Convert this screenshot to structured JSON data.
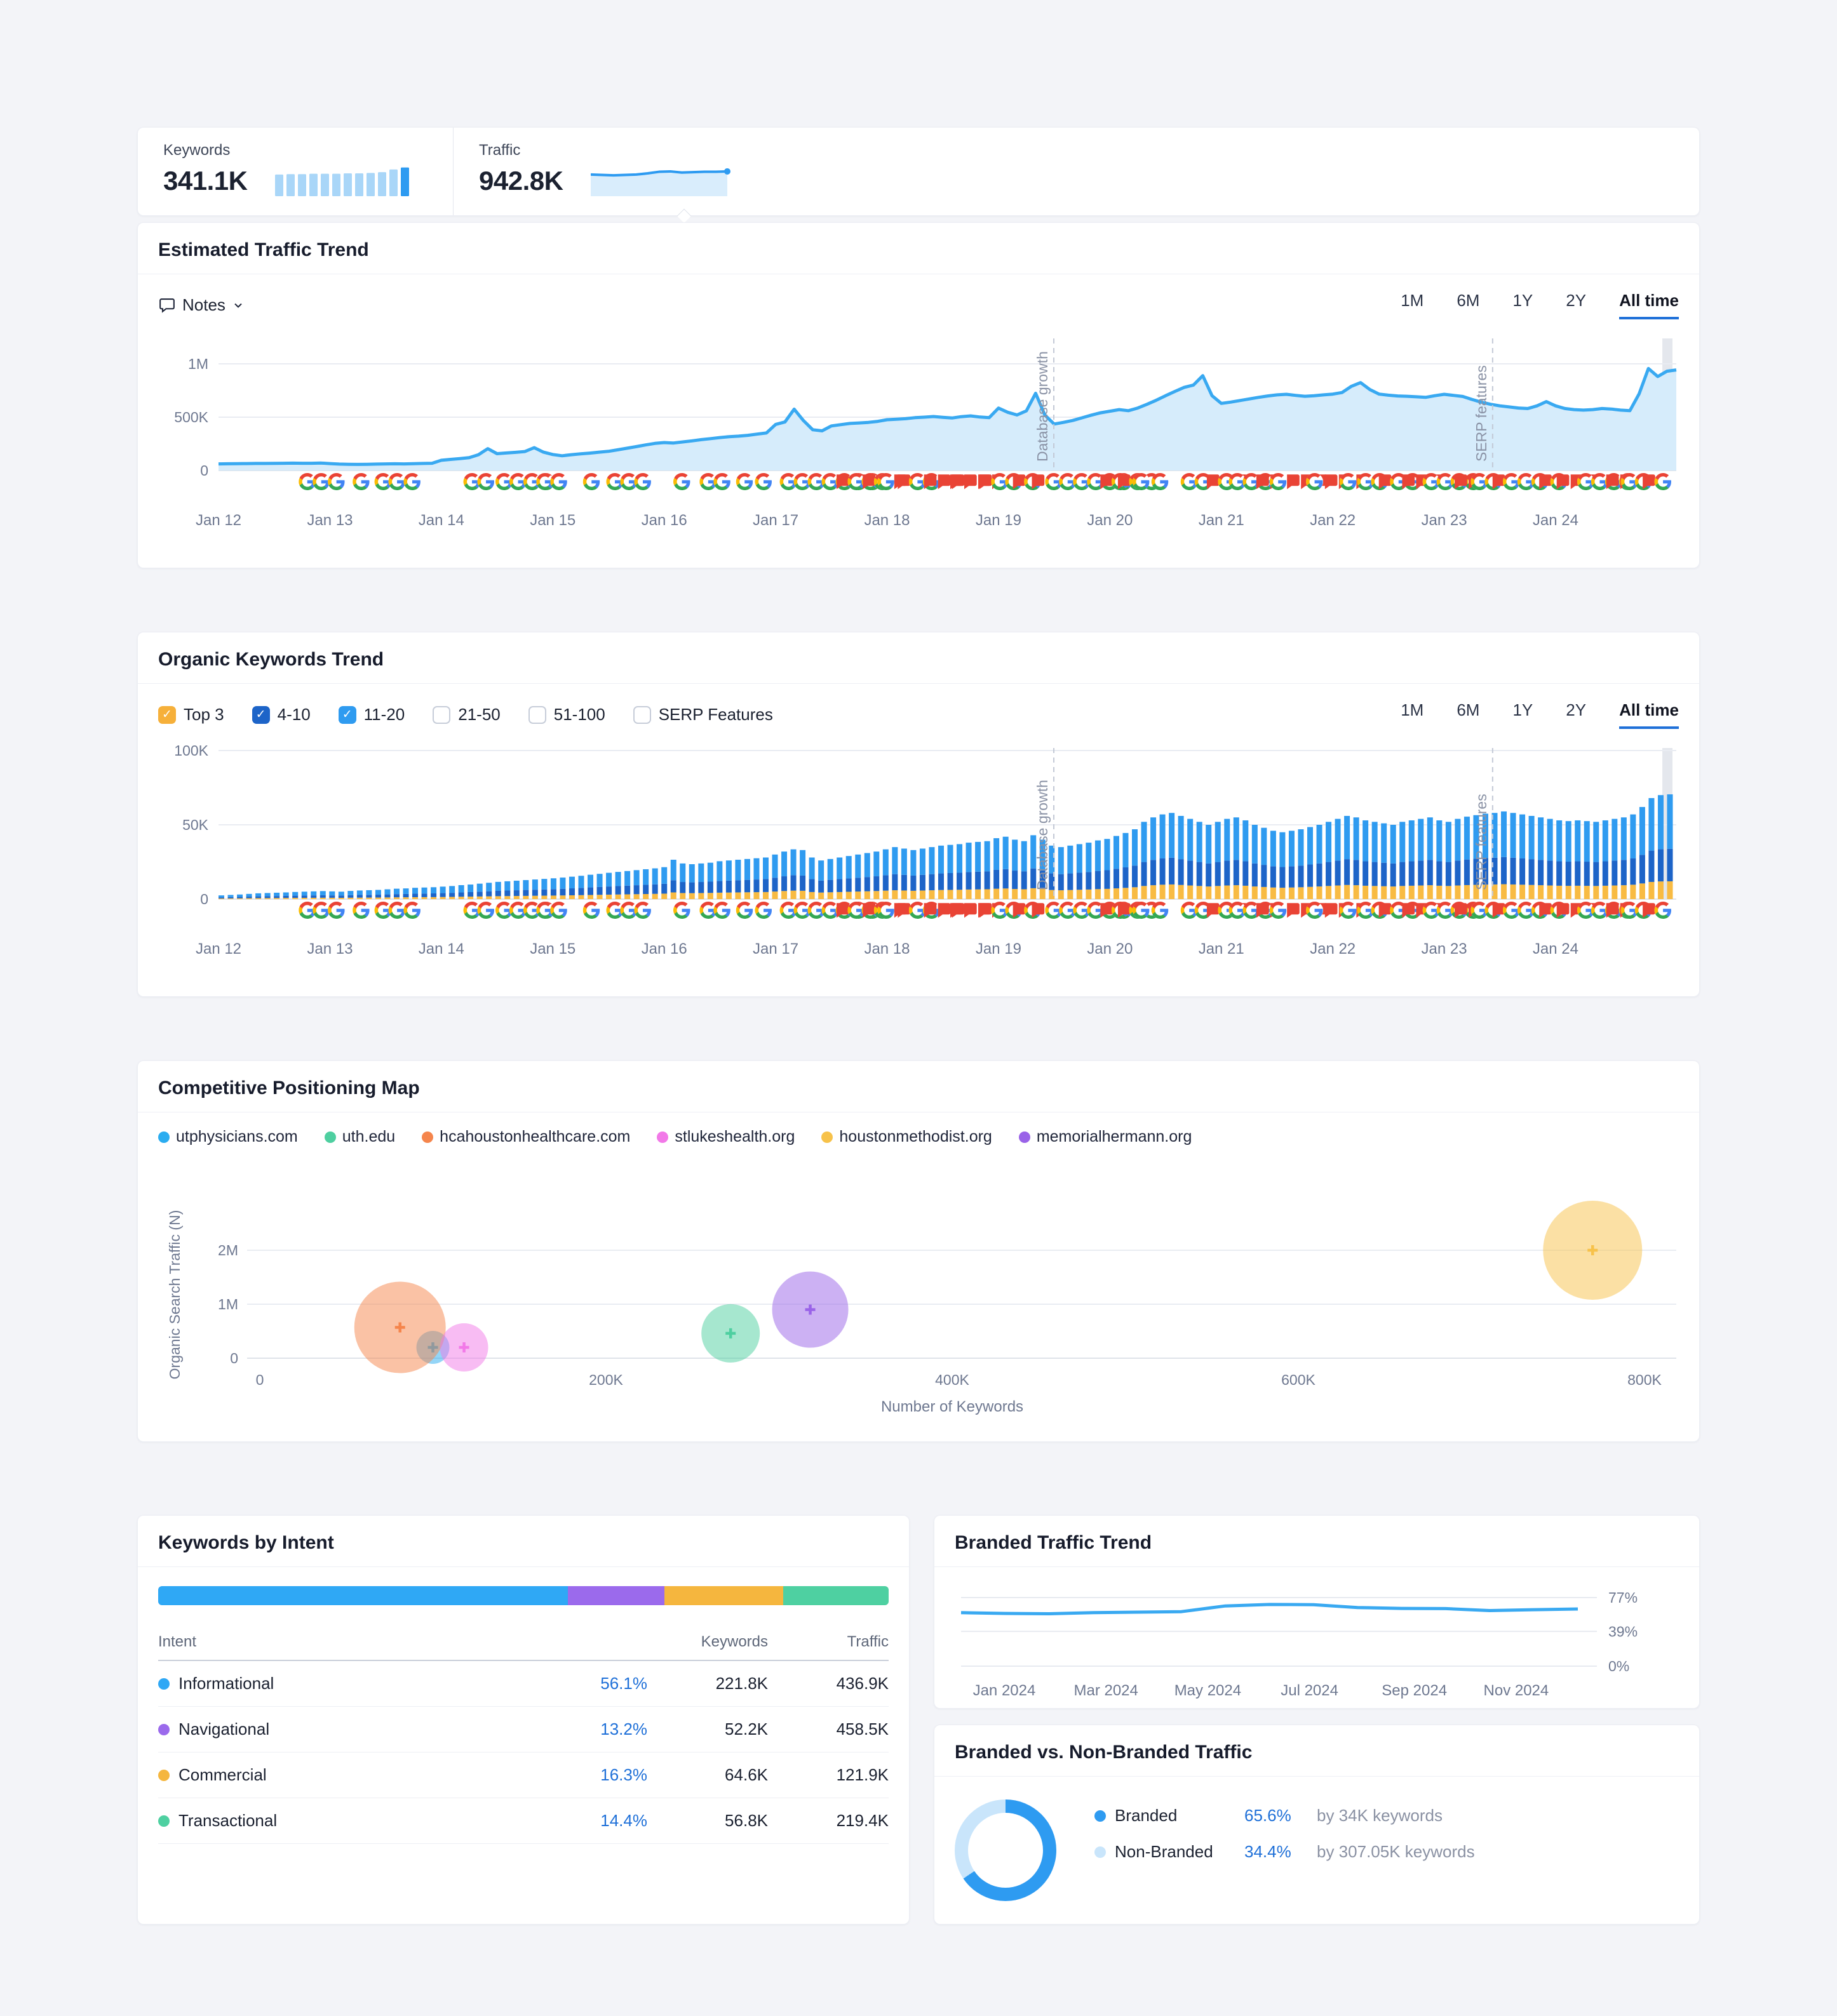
{
  "summary": {
    "keywords": {
      "label": "Keywords",
      "value": "341.1K",
      "spark": [
        55,
        56,
        56,
        57,
        57,
        57,
        58,
        58,
        59,
        61,
        68,
        73
      ],
      "bar_color": "#a9d6f8",
      "bar_active": "#2e9bf1"
    },
    "traffic": {
      "label": "Traffic",
      "value": "942.8K",
      "spark": [
        55,
        54,
        53,
        54,
        55,
        58,
        62,
        63,
        60,
        61,
        62,
        62,
        63
      ],
      "line_color": "#2e9bf1",
      "fill_color": "#d9edfc"
    }
  },
  "timeranges": {
    "options": [
      "1M",
      "6M",
      "1Y",
      "2Y",
      "All time"
    ],
    "active": "All time"
  },
  "events": [
    {
      "p": 0.055,
      "s": "GG"
    },
    {
      "p": 0.075,
      "s": "G"
    },
    {
      "p": 0.092,
      "s": "G"
    },
    {
      "p": 0.107,
      "s": "GG"
    },
    {
      "p": 0.127,
      "s": "G"
    },
    {
      "p": 0.168,
      "s": "GG"
    },
    {
      "p": 0.19,
      "s": "GGGG"
    },
    {
      "p": 0.218,
      "s": "GG"
    },
    {
      "p": 0.25,
      "s": "G"
    },
    {
      "p": 0.266,
      "s": "GGG"
    },
    {
      "p": 0.312,
      "s": "G"
    },
    {
      "p": 0.33,
      "s": "GG"
    },
    {
      "p": 0.355,
      "s": "G"
    },
    {
      "p": 0.368,
      "s": "G"
    },
    {
      "p": 0.385,
      "s": "GGGGGGG"
    },
    {
      "p": 0.422,
      "s": "FGG"
    },
    {
      "p": 0.44,
      "s": "FG"
    },
    {
      "p": 0.452,
      "s": "GF"
    },
    {
      "p": 0.464,
      "s": "FGG"
    },
    {
      "p": 0.482,
      "s": "FFF"
    },
    {
      "p": 0.5,
      "s": "FFFF"
    },
    {
      "p": 0.52,
      "s": "F"
    },
    {
      "p": 0.53,
      "s": "GG"
    },
    {
      "p": 0.543,
      "s": "FG"
    },
    {
      "p": 0.556,
      "s": "F"
    },
    {
      "p": 0.567,
      "s": "GGGGGGGG"
    },
    {
      "p": 0.603,
      "s": "FG"
    },
    {
      "p": 0.615,
      "s": "FG"
    },
    {
      "p": 0.627,
      "s": "G"
    },
    {
      "p": 0.64,
      "s": "G"
    },
    {
      "p": 0.66,
      "s": "GG"
    },
    {
      "p": 0.676,
      "s": "FGF"
    },
    {
      "p": 0.693,
      "s": "GGG"
    },
    {
      "p": 0.71,
      "s": "FF"
    },
    {
      "p": 0.721,
      "s": "G"
    },
    {
      "p": 0.731,
      "s": "FFF"
    },
    {
      "p": 0.746,
      "s": "G"
    },
    {
      "p": 0.757,
      "s": "FF"
    },
    {
      "p": 0.769,
      "s": "GF"
    },
    {
      "p": 0.781,
      "s": "GG"
    },
    {
      "p": 0.794,
      "s": "FGG"
    },
    {
      "p": 0.81,
      "s": "FFF"
    },
    {
      "p": 0.826,
      "s": "GGGG"
    },
    {
      "p": 0.846,
      "s": "FF"
    },
    {
      "p": 0.859,
      "s": "GG"
    },
    {
      "p": 0.872,
      "s": "F"
    },
    {
      "p": 0.881,
      "s": "G"
    },
    {
      "p": 0.891,
      "s": "GG"
    },
    {
      "p": 0.904,
      "s": "FG"
    },
    {
      "p": 0.916,
      "s": "FFF"
    },
    {
      "p": 0.932,
      "s": "GGGG"
    },
    {
      "p": 0.95,
      "s": "FF"
    },
    {
      "p": 0.962,
      "s": "GG"
    },
    {
      "p": 0.975,
      "s": "F"
    },
    {
      "p": 0.985,
      "s": "G"
    }
  ],
  "traffic_trend": {
    "title": "Estimated Traffic Trend",
    "notes_label": "Notes",
    "type": "area",
    "units": "K visits/month",
    "y_ticks": [
      {
        "v": 1000,
        "label": "1M"
      },
      {
        "v": 500,
        "label": "500K"
      },
      {
        "v": 0,
        "label": "0"
      }
    ],
    "x_ticks": [
      "Jan 12",
      "Jan 13",
      "Jan 14",
      "Jan 15",
      "Jan 16",
      "Jan 17",
      "Jan 18",
      "Jan 19",
      "Jan 20",
      "Jan 21",
      "Jan 22",
      "Jan 23",
      "Jan 24"
    ],
    "annotations": [
      {
        "label": "Database growth",
        "p": 0.573
      },
      {
        "label": "SERP features",
        "p": 0.874
      }
    ],
    "line_color": "#39a9f1",
    "fill_color": "#d6ecfb",
    "values": [
      62,
      63,
      64,
      65,
      66,
      66,
      67,
      68,
      69,
      68,
      68,
      70,
      65,
      60,
      58,
      57,
      58,
      60,
      62,
      63,
      62,
      64,
      66,
      68,
      96,
      104,
      112,
      120,
      148,
      205,
      158,
      164,
      170,
      178,
      214,
      172,
      150,
      138,
      148,
      156,
      163,
      172,
      180,
      194,
      209,
      224,
      240,
      254,
      262,
      258,
      268,
      278,
      289,
      299,
      309,
      317,
      322,
      330,
      341,
      352,
      432,
      455,
      575,
      468,
      382,
      372,
      418,
      430,
      441,
      446,
      451,
      461,
      476,
      481,
      486,
      495,
      500,
      506,
      498,
      492,
      505,
      512,
      501,
      496,
      585,
      546,
      521,
      559,
      724,
      519,
      436,
      451,
      469,
      494,
      519,
      541,
      556,
      571,
      561,
      586,
      621,
      659,
      701,
      741,
      779,
      801,
      889,
      701,
      629,
      641,
      656,
      671,
      686,
      699,
      709,
      714,
      704,
      696,
      701,
      709,
      716,
      731,
      789,
      824,
      759,
      716,
      706,
      699,
      696,
      691,
      686,
      701,
      714,
      704,
      694,
      666,
      641,
      621,
      606,
      596,
      586,
      581,
      606,
      646,
      606,
      581,
      571,
      566,
      571,
      581,
      576,
      566,
      561,
      719,
      956,
      881,
      931,
      943
    ]
  },
  "keywords_trend": {
    "title": "Organic Keywords Trend",
    "type": "stacked-bar",
    "units": "K keywords",
    "filters": [
      {
        "label": "Top 3",
        "checked": true,
        "color": "#f6b03a"
      },
      {
        "label": "4-10",
        "checked": true,
        "color": "#1d64c8"
      },
      {
        "label": "11-20",
        "checked": true,
        "color": "#2f9bf0"
      },
      {
        "label": "21-50",
        "checked": false,
        "color": "#c7cdd9"
      },
      {
        "label": "51-100",
        "checked": false,
        "color": "#c7cdd9"
      },
      {
        "label": "SERP Features",
        "checked": false,
        "color": "#c7cdd9"
      }
    ],
    "y_ticks": [
      {
        "v": 100,
        "label": "100K"
      },
      {
        "v": 50,
        "label": "50K"
      },
      {
        "v": 0,
        "label": "0"
      }
    ],
    "x_ticks": [
      "Jan 12",
      "Jan 13",
      "Jan 14",
      "Jan 15",
      "Jan 16",
      "Jan 17",
      "Jan 18",
      "Jan 19",
      "Jan 20",
      "Jan 21",
      "Jan 22",
      "Jan 23",
      "Jan 24"
    ],
    "annotations": [
      {
        "label": "Database growth",
        "p": 0.573
      },
      {
        "label": "SERP features",
        "p": 0.874
      }
    ],
    "series_ratios": {
      "top3": 0.17,
      "pos4_10": 0.31,
      "pos11_20": 0.52
    },
    "colors": {
      "top3": "#f8bb43",
      "pos4_10": "#1d64c8",
      "pos11_20": "#2f9bf0"
    },
    "totals": [
      2.5,
      2.8,
      3.1,
      3.5,
      3.9,
      4.1,
      4.3,
      4.5,
      4.8,
      5,
      5.2,
      5.4,
      5.2,
      5,
      5.5,
      5.8,
      6,
      6.2,
      6.6,
      7,
      7.2,
      7.6,
      7.8,
      8,
      8.4,
      8.8,
      9.4,
      9.8,
      10.4,
      11,
      11.6,
      12,
      12.4,
      12.8,
      13.2,
      13.6,
      14,
      14.5,
      15.1,
      15.7,
      16.4,
      17,
      17.7,
      18.3,
      18.9,
      19.5,
      20.1,
      20.7,
      21.5,
      26.5,
      24,
      23.5,
      24,
      24.5,
      25.5,
      26,
      26.5,
      27,
      27.5,
      28,
      30,
      32,
      33.5,
      33,
      28,
      26,
      27,
      28,
      29,
      30,
      31,
      32,
      33.5,
      35,
      34,
      33,
      34,
      35,
      36,
      36.5,
      37,
      38,
      38.5,
      39,
      41,
      42,
      40,
      39,
      43,
      40,
      36,
      35,
      36,
      37,
      38,
      39.5,
      40.5,
      42.5,
      44.5,
      47,
      52,
      55,
      57,
      58,
      56,
      54,
      52,
      50,
      52,
      54,
      55,
      53,
      50,
      48,
      46,
      45,
      46,
      47,
      48.5,
      50,
      52,
      54,
      56,
      55,
      53,
      52,
      51,
      50,
      52,
      53,
      54,
      55,
      53,
      52,
      54,
      55.5,
      56.5,
      57.5,
      58,
      59,
      58,
      57,
      56,
      55,
      54,
      53,
      52.5,
      53,
      52.5,
      52,
      53,
      54,
      55,
      57,
      62,
      68,
      70,
      70.5
    ]
  },
  "positioning_map": {
    "title": "Competitive Positioning Map",
    "type": "bubble",
    "xlabel": "Number of Keywords",
    "ylabel": "Organic Search Traffic (N)",
    "x_ticks": [
      {
        "v": 0,
        "label": "0"
      },
      {
        "v": 200,
        "label": "200K"
      },
      {
        "v": 400,
        "label": "400K"
      },
      {
        "v": 600,
        "label": "600K"
      },
      {
        "v": 800,
        "label": "800K"
      }
    ],
    "y_ticks": [
      {
        "v": 0,
        "label": "0"
      },
      {
        "v": 1,
        "label": "1M"
      },
      {
        "v": 2,
        "label": "2M"
      }
    ],
    "bubbles": [
      {
        "domain": "utphysicians.com",
        "color": "#2aacf0",
        "keywords_k": 100,
        "traffic_m": 0.2,
        "r": 26
      },
      {
        "domain": "uth.edu",
        "color": "#4ecfa0",
        "keywords_k": 272,
        "traffic_m": 0.46,
        "r": 46
      },
      {
        "domain": "hcahoustonhealthcare.com",
        "color": "#f5854c",
        "keywords_k": 81,
        "traffic_m": 0.57,
        "r": 72
      },
      {
        "domain": "stlukeshealth.org",
        "color": "#f279e8",
        "keywords_k": 118,
        "traffic_m": 0.2,
        "r": 38
      },
      {
        "domain": "houstonmethodist.org",
        "color": "#f7c24a",
        "keywords_k": 770,
        "traffic_m": 2.0,
        "r": 78
      },
      {
        "domain": "memorialhermann.org",
        "color": "#9a63e8",
        "keywords_k": 318,
        "traffic_m": 0.9,
        "r": 60
      }
    ]
  },
  "intents": {
    "title": "Keywords by Intent",
    "col_intent": "Intent",
    "col_keywords": "Keywords",
    "col_traffic": "Traffic",
    "rows": [
      {
        "label": "Informational",
        "color": "#2fa8f5",
        "percent": "56.1%",
        "share": 56.1,
        "keywords": "221.8K",
        "traffic": "436.9K"
      },
      {
        "label": "Navigational",
        "color": "#9b6aec",
        "percent": "13.2%",
        "share": 13.2,
        "keywords": "52.2K",
        "traffic": "458.5K"
      },
      {
        "label": "Commercial",
        "color": "#f5b63e",
        "percent": "16.3%",
        "share": 16.3,
        "keywords": "64.6K",
        "traffic": "121.9K"
      },
      {
        "label": "Transactional",
        "color": "#4ed0a1",
        "percent": "14.4%",
        "share": 14.4,
        "keywords": "56.8K",
        "traffic": "219.4K"
      }
    ]
  },
  "branded_trend": {
    "title": "Branded Traffic Trend",
    "type": "line",
    "units": "% branded",
    "y_ticks": [
      {
        "v": 77,
        "label": "77%"
      },
      {
        "v": 39,
        "label": "39%"
      },
      {
        "v": 0,
        "label": "0%"
      }
    ],
    "x_ticks": [
      "Jan 2024",
      "Mar 2024",
      "May 2024",
      "Jul 2024",
      "Sep 2024",
      "Nov 2024"
    ],
    "line_color": "#39a9f1",
    "values": [
      60,
      59.2,
      58.8,
      60,
      60.6,
      61.2,
      67.6,
      69.2,
      69,
      65.8,
      64.8,
      64.6,
      62.4,
      63.4,
      64.2
    ]
  },
  "branded_split": {
    "title": "Branded vs. Non-Branded Traffic",
    "type": "donut",
    "segments": [
      {
        "label": "Branded",
        "percent": "65.6%",
        "value": 65.6,
        "color": "#2e9bf1",
        "desc": "by 34K keywords"
      },
      {
        "label": "Non-Branded",
        "percent": "34.4%",
        "value": 34.4,
        "color": "#c9e5fb",
        "desc": "by 307.05K keywords"
      }
    ]
  }
}
